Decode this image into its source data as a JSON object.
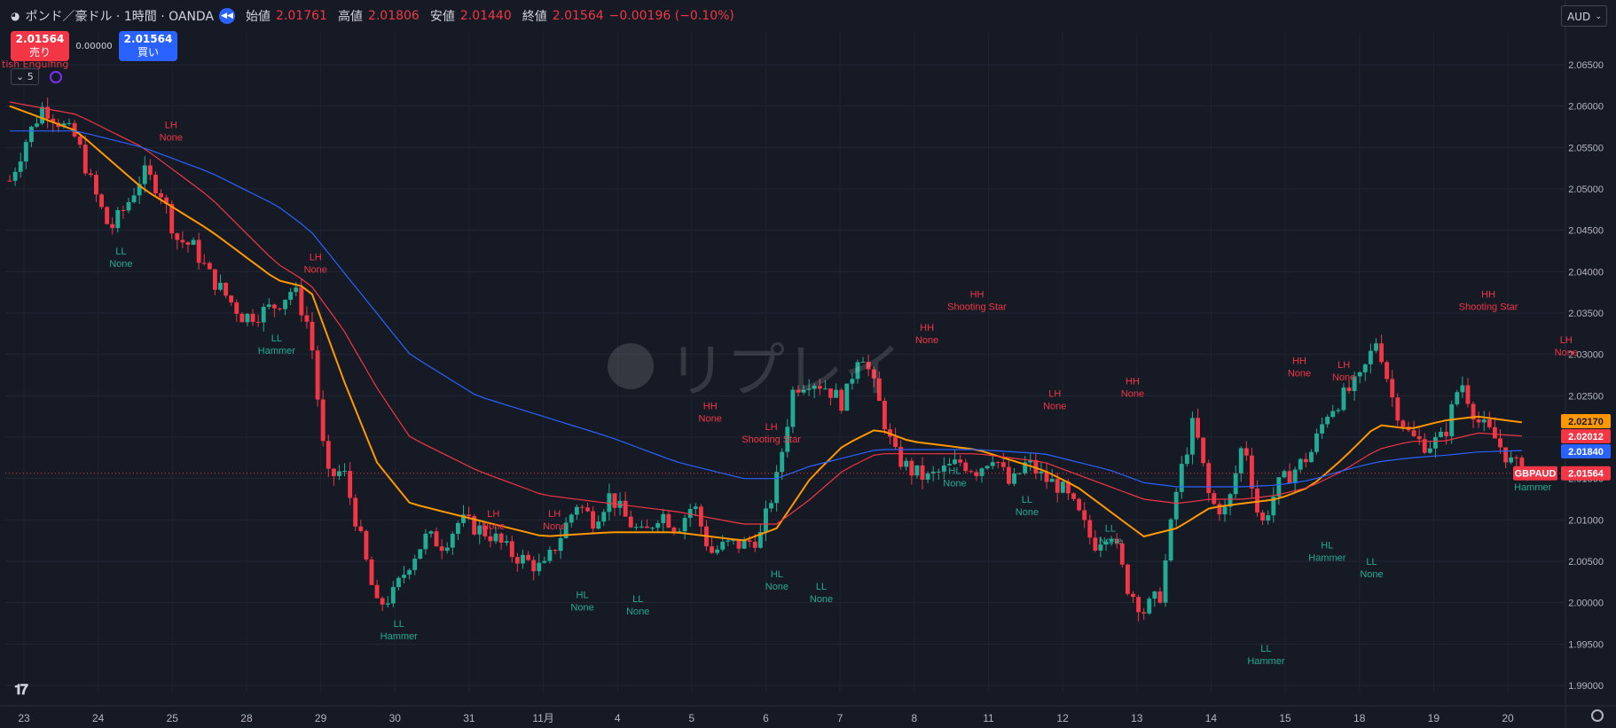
{
  "header": {
    "symbol_title": "ポンド／豪ドル · 1時間 · OANDA",
    "open_label": "始値",
    "open_value": "2.01761",
    "high_label": "高値",
    "high_value": "2.01806",
    "low_label": "安値",
    "low_value": "2.01440",
    "close_label": "終値",
    "close_value": "2.01564",
    "change_value": "−0.00196 (−0.10%)"
  },
  "trade": {
    "sell_price": "2.01564",
    "sell_label": "売り",
    "spread": "0.00000",
    "buy_price": "2.01564",
    "buy_label": "買い"
  },
  "indicator": {
    "count": "5",
    "cut_label": "tish Engulfing"
  },
  "currency": {
    "selected": "AUD"
  },
  "watermark": "リプレイ",
  "colors": {
    "background": "#161a25",
    "up": "#22ab94",
    "down": "#f23645",
    "ma_fast": "#ff9800",
    "ma_mid": "#f23645",
    "ma_slow": "#2962ff"
  },
  "price_tags": {
    "ma_fast": "2.02170",
    "ma_mid": "2.02012",
    "ma_slow": "2.01840",
    "symbol": "GBPAUD",
    "last": "2.01564"
  },
  "chart_data": {
    "type": "candlestick",
    "symbol": "GBPAUD",
    "y_ticks": [
      "2.06500",
      "2.06000",
      "2.05500",
      "2.05000",
      "2.04500",
      "2.04000",
      "2.03500",
      "2.03000",
      "2.02500",
      "2.02000",
      "2.01500",
      "2.01000",
      "2.00500",
      "2.00000",
      "1.99500",
      "1.99000"
    ],
    "x_ticks": [
      "23",
      "24",
      "25",
      "28",
      "29",
      "30",
      "31",
      "11月",
      "4",
      "5",
      "6",
      "7",
      "8",
      "11",
      "12",
      "13",
      "14",
      "15",
      "18",
      "19",
      "20"
    ],
    "close_path": [
      [
        0,
        2.051
      ],
      [
        3,
        2.056
      ],
      [
        6,
        2.06
      ],
      [
        9,
        2.058
      ],
      [
        12,
        2.056
      ],
      [
        15,
        2.05
      ],
      [
        18,
        2.045
      ],
      [
        21,
        2.048
      ],
      [
        24,
        2.052
      ],
      [
        27,
        2.05
      ],
      [
        30,
        2.044
      ],
      [
        33,
        2.043
      ],
      [
        36,
        2.0395
      ],
      [
        39,
        2.037
      ],
      [
        42,
        2.0345
      ],
      [
        45,
        2.035
      ],
      [
        48,
        2.036
      ],
      [
        51,
        2.038
      ],
      [
        54,
        2.033
      ],
      [
        57,
        2.015
      ],
      [
        60,
        2.016
      ],
      [
        63,
        2.008
      ],
      [
        66,
        1.9995
      ],
      [
        69,
        2.001
      ],
      [
        72,
        2.005
      ],
      [
        75,
        2.008
      ],
      [
        78,
        2.007
      ],
      [
        81,
        2.01
      ],
      [
        84,
        2.009
      ],
      [
        87,
        2.008
      ],
      [
        90,
        2.006
      ],
      [
        93,
        2.005
      ],
      [
        96,
        2.004
      ],
      [
        99,
        2.008
      ],
      [
        102,
        2.012
      ],
      [
        105,
        2.01
      ],
      [
        108,
        2.013
      ],
      [
        111,
        2.01
      ],
      [
        114,
        2.008
      ],
      [
        117,
        2.011
      ],
      [
        120,
        2.009
      ],
      [
        123,
        2.012
      ],
      [
        126,
        2.006
      ],
      [
        129,
        2.007
      ],
      [
        132,
        2.007
      ],
      [
        135,
        2.008
      ],
      [
        138,
        2.015
      ],
      [
        141,
        2.026
      ],
      [
        144,
        2.027
      ],
      [
        147,
        2.026
      ],
      [
        150,
        2.024
      ],
      [
        153,
        2.031
      ],
      [
        156,
        2.025
      ],
      [
        159,
        2.018
      ],
      [
        162,
        2.016
      ],
      [
        165,
        2.015
      ],
      [
        168,
        2.016
      ],
      [
        171,
        2.017
      ],
      [
        174,
        2.016
      ],
      [
        177,
        2.018
      ],
      [
        180,
        2.014
      ],
      [
        183,
        2.017
      ],
      [
        186,
        2.015
      ],
      [
        189,
        2.014
      ],
      [
        192,
        2.011
      ],
      [
        195,
        2.007
      ],
      [
        198,
        2.009
      ],
      [
        201,
        2.002
      ],
      [
        204,
        1.999
      ],
      [
        207,
        2.001
      ],
      [
        210,
        2.014
      ],
      [
        213,
        2.022
      ],
      [
        216,
        2.012
      ],
      [
        219,
        2.011
      ],
      [
        222,
        2.02
      ],
      [
        225,
        2.009
      ],
      [
        228,
        2.014
      ],
      [
        231,
        2.016
      ],
      [
        234,
        2.018
      ],
      [
        237,
        2.023
      ],
      [
        240,
        2.025
      ],
      [
        243,
        2.027
      ],
      [
        246,
        2.032
      ],
      [
        249,
        2.024
      ],
      [
        252,
        2.02
      ],
      [
        255,
        2.019
      ],
      [
        258,
        2.02
      ],
      [
        261,
        2.027
      ],
      [
        264,
        2.022
      ],
      [
        267,
        2.02
      ],
      [
        270,
        2.017
      ],
      [
        273,
        2.0156
      ]
    ],
    "moving_averages": [
      {
        "name": "ma_fast",
        "color": "#ff9800",
        "points": [
          [
            0,
            2.06
          ],
          [
            12,
            2.057
          ],
          [
            24,
            2.05
          ],
          [
            36,
            2.045
          ],
          [
            48,
            2.039
          ],
          [
            54,
            2.038
          ],
          [
            60,
            2.027
          ],
          [
            66,
            2.017
          ],
          [
            72,
            2.012
          ],
          [
            84,
            2.01
          ],
          [
            96,
            2.008
          ],
          [
            108,
            2.0085
          ],
          [
            120,
            2.0085
          ],
          [
            132,
            2.0075
          ],
          [
            138,
            2.009
          ],
          [
            144,
            2.015
          ],
          [
            150,
            2.019
          ],
          [
            156,
            2.021
          ],
          [
            162,
            2.0195
          ],
          [
            174,
            2.0185
          ],
          [
            186,
            2.016
          ],
          [
            192,
            2.014
          ],
          [
            198,
            2.011
          ],
          [
            204,
            2.008
          ],
          [
            210,
            2.009
          ],
          [
            216,
            2.0115
          ],
          [
            222,
            2.012
          ],
          [
            228,
            2.0125
          ],
          [
            234,
            2.014
          ],
          [
            240,
            2.0175
          ],
          [
            246,
            2.0215
          ],
          [
            252,
            2.021
          ],
          [
            258,
            2.022
          ],
          [
            264,
            2.0225
          ],
          [
            273,
            2.0217
          ]
        ]
      },
      {
        "name": "ma_mid",
        "color": "#f23645",
        "points": [
          [
            0,
            2.0605
          ],
          [
            12,
            2.059
          ],
          [
            24,
            2.055
          ],
          [
            36,
            2.049
          ],
          [
            48,
            2.041
          ],
          [
            54,
            2.0385
          ],
          [
            60,
            2.033
          ],
          [
            66,
            2.026
          ],
          [
            72,
            2.02
          ],
          [
            84,
            2.016
          ],
          [
            96,
            2.013
          ],
          [
            108,
            2.012
          ],
          [
            120,
            2.011
          ],
          [
            132,
            2.0095
          ],
          [
            138,
            2.0095
          ],
          [
            144,
            2.0125
          ],
          [
            150,
            2.016
          ],
          [
            156,
            2.018
          ],
          [
            162,
            2.018
          ],
          [
            174,
            2.018
          ],
          [
            186,
            2.017
          ],
          [
            192,
            2.0155
          ],
          [
            198,
            2.014
          ],
          [
            204,
            2.0125
          ],
          [
            210,
            2.012
          ],
          [
            216,
            2.0125
          ],
          [
            222,
            2.0125
          ],
          [
            228,
            2.013
          ],
          [
            234,
            2.014
          ],
          [
            240,
            2.016
          ],
          [
            246,
            2.0185
          ],
          [
            252,
            2.0195
          ],
          [
            258,
            2.0195
          ],
          [
            264,
            2.0205
          ],
          [
            273,
            2.0201
          ]
        ]
      },
      {
        "name": "ma_slow",
        "color": "#2962ff",
        "points": [
          [
            0,
            2.057
          ],
          [
            12,
            2.057
          ],
          [
            24,
            2.055
          ],
          [
            36,
            2.052
          ],
          [
            48,
            2.048
          ],
          [
            54,
            2.045
          ],
          [
            60,
            2.04
          ],
          [
            66,
            2.035
          ],
          [
            72,
            2.03
          ],
          [
            84,
            2.025
          ],
          [
            96,
            2.0225
          ],
          [
            108,
            2.02
          ],
          [
            120,
            2.017
          ],
          [
            132,
            2.015
          ],
          [
            138,
            2.015
          ],
          [
            144,
            2.0165
          ],
          [
            150,
            2.0175
          ],
          [
            156,
            2.0185
          ],
          [
            162,
            2.0185
          ],
          [
            174,
            2.0185
          ],
          [
            186,
            2.018
          ],
          [
            192,
            2.017
          ],
          [
            198,
            2.016
          ],
          [
            204,
            2.0145
          ],
          [
            210,
            2.014
          ],
          [
            216,
            2.014
          ],
          [
            222,
            2.014
          ],
          [
            228,
            2.0142
          ],
          [
            234,
            2.0148
          ],
          [
            240,
            2.016
          ],
          [
            246,
            2.017
          ],
          [
            252,
            2.0175
          ],
          [
            258,
            2.0178
          ],
          [
            264,
            2.0182
          ],
          [
            273,
            2.0184
          ]
        ]
      }
    ],
    "annotations": [
      {
        "line1": "LH",
        "line2": "None",
        "bar": 29,
        "price": 2.055,
        "side": "above",
        "kind": "high"
      },
      {
        "line1": "LL",
        "line2": "None",
        "bar": 20,
        "price": 2.044,
        "side": "below",
        "kind": "low"
      },
      {
        "line1": "LH",
        "line2": "None",
        "bar": 55,
        "price": 2.039,
        "side": "above",
        "kind": "high"
      },
      {
        "line1": "LL",
        "line2": "Hammer",
        "bar": 48,
        "price": 2.0335,
        "side": "below",
        "kind": "low"
      },
      {
        "line1": "LH",
        "line2": "None",
        "bar": 87,
        "price": 2.008,
        "side": "above",
        "kind": "high"
      },
      {
        "line1": "LH",
        "line2": "None",
        "bar": 98,
        "price": 2.008,
        "side": "above",
        "kind": "high"
      },
      {
        "line1": "LL",
        "line2": "Hammer",
        "bar": 70,
        "price": 1.999,
        "side": "below",
        "kind": "low"
      },
      {
        "line1": "HL",
        "line2": "None",
        "bar": 103,
        "price": 2.0025,
        "side": "below",
        "kind": "low"
      },
      {
        "line1": "LL",
        "line2": "None",
        "bar": 113,
        "price": 2.002,
        "side": "below",
        "kind": "low"
      },
      {
        "line1": "HH",
        "line2": "None",
        "bar": 126,
        "price": 2.021,
        "side": "above",
        "kind": "high"
      },
      {
        "line1": "LH",
        "line2": "Shooting Star",
        "bar": 137,
        "price": 2.0185,
        "side": "above",
        "kind": "high"
      },
      {
        "line1": "HL",
        "line2": "None",
        "bar": 138,
        "price": 2.005,
        "side": "below",
        "kind": "low"
      },
      {
        "line1": "LL",
        "line2": "None",
        "bar": 146,
        "price": 2.0035,
        "side": "below",
        "kind": "low"
      },
      {
        "line1": "HH",
        "line2": "None",
        "bar": 165,
        "price": 2.0305,
        "side": "above",
        "kind": "high"
      },
      {
        "line1": "HH",
        "line2": "Shooting Star",
        "bar": 174,
        "price": 2.0345,
        "side": "above",
        "kind": "high"
      },
      {
        "line1": "HL",
        "line2": "None",
        "bar": 170,
        "price": 2.0175,
        "side": "below",
        "kind": "low"
      },
      {
        "line1": "LH",
        "line2": "None",
        "bar": 188,
        "price": 2.0225,
        "side": "above",
        "kind": "high"
      },
      {
        "line1": "LL",
        "line2": "None",
        "bar": 183,
        "price": 2.014,
        "side": "below",
        "kind": "low"
      },
      {
        "line1": "HH",
        "line2": "None",
        "bar": 202,
        "price": 2.024,
        "side": "above",
        "kind": "high"
      },
      {
        "line1": "LL",
        "line2": "None",
        "bar": 198,
        "price": 2.0105,
        "side": "below",
        "kind": "low"
      },
      {
        "line1": "LL",
        "line2": "Hammer",
        "bar": 226,
        "price": 1.996,
        "side": "below",
        "kind": "low"
      },
      {
        "line1": "HH",
        "line2": "None",
        "bar": 232,
        "price": 2.0265,
        "side": "above",
        "kind": "high"
      },
      {
        "line1": "LH",
        "line2": "None",
        "bar": 240,
        "price": 2.026,
        "side": "above",
        "kind": "high"
      },
      {
        "line1": "HL",
        "line2": "Hammer",
        "bar": 237,
        "price": 2.0085,
        "side": "below",
        "kind": "low"
      },
      {
        "line1": "LL",
        "line2": "None",
        "bar": 245,
        "price": 2.0065,
        "side": "below",
        "kind": "low"
      },
      {
        "line1": "HH",
        "line2": "Shooting Star",
        "bar": 266,
        "price": 2.0345,
        "side": "above",
        "kind": "high"
      },
      {
        "line1": "LH",
        "line2": "None",
        "bar": 280,
        "price": 2.029,
        "side": "above",
        "kind": "high"
      },
      {
        "line1": "HL",
        "line2": "Hammer",
        "bar": 274,
        "price": 2.017,
        "side": "below",
        "kind": "low"
      }
    ]
  }
}
